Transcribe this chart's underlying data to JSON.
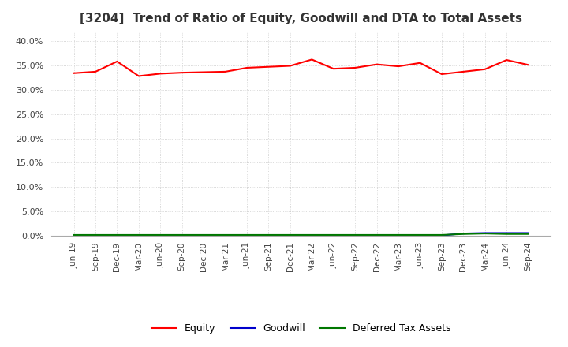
{
  "title": "[3204]  Trend of Ratio of Equity, Goodwill and DTA to Total Assets",
  "title_fontsize": 11,
  "xlabels": [
    "Jun-19",
    "Sep-19",
    "Dec-19",
    "Mar-20",
    "Jun-20",
    "Sep-20",
    "Dec-20",
    "Mar-21",
    "Jun-21",
    "Sep-21",
    "Dec-21",
    "Mar-22",
    "Jun-22",
    "Sep-22",
    "Dec-22",
    "Mar-23",
    "Jun-23",
    "Sep-23",
    "Dec-23",
    "Mar-24",
    "Jun-24",
    "Sep-24"
  ],
  "equity": [
    33.4,
    33.7,
    35.8,
    32.8,
    33.3,
    33.5,
    33.6,
    33.7,
    34.5,
    34.7,
    34.9,
    36.2,
    34.3,
    34.5,
    35.2,
    34.8,
    35.5,
    33.2,
    33.7,
    34.2,
    36.1,
    35.1
  ],
  "goodwill": [
    0.1,
    0.1,
    0.1,
    0.1,
    0.1,
    0.1,
    0.1,
    0.1,
    0.1,
    0.1,
    0.1,
    0.1,
    0.1,
    0.1,
    0.1,
    0.1,
    0.1,
    0.1,
    0.5,
    0.6,
    0.6,
    0.6
  ],
  "dta": [
    0.2,
    0.2,
    0.2,
    0.2,
    0.2,
    0.2,
    0.2,
    0.2,
    0.2,
    0.2,
    0.2,
    0.2,
    0.2,
    0.2,
    0.2,
    0.2,
    0.2,
    0.2,
    0.4,
    0.5,
    0.4,
    0.4
  ],
  "equity_color": "#ff0000",
  "goodwill_color": "#0000cc",
  "dta_color": "#007700",
  "ylim": [
    0.0,
    42.0
  ],
  "yticks": [
    0.0,
    5.0,
    10.0,
    15.0,
    20.0,
    25.0,
    30.0,
    35.0,
    40.0
  ],
  "background_color": "#ffffff",
  "grid_color": "#cccccc",
  "legend_labels": [
    "Equity",
    "Goodwill",
    "Deferred Tax Assets"
  ]
}
